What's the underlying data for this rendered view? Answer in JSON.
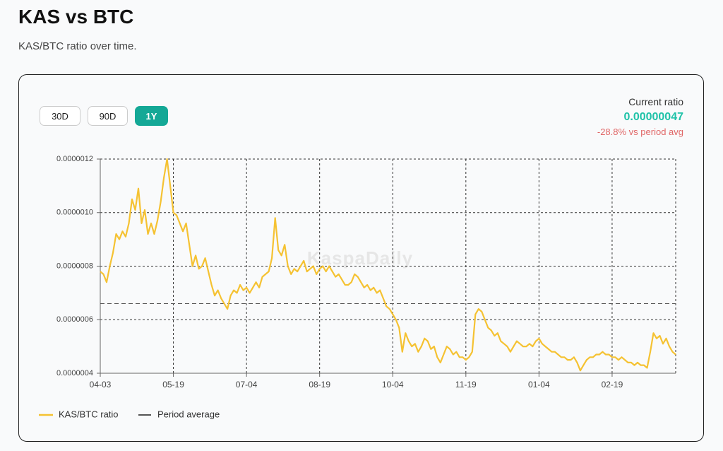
{
  "header": {
    "title": "KAS vs BTC",
    "subtitle": "KAS/BTC ratio over time."
  },
  "controls": {
    "ranges": [
      "30D",
      "90D",
      "1Y"
    ],
    "selected": "1Y"
  },
  "summary": {
    "label": "Current ratio",
    "value": "0.00000047",
    "change": "-28.8% vs period avg"
  },
  "watermark": "KaspaDaily",
  "chart_data": {
    "type": "line",
    "categories": [
      "04-03",
      "04-05",
      "04-07",
      "04-09",
      "04-11",
      "04-13",
      "04-15",
      "04-17",
      "04-19",
      "04-21",
      "04-23",
      "04-25",
      "04-27",
      "04-29",
      "05-01",
      "05-03",
      "05-05",
      "05-07",
      "05-09",
      "05-11",
      "05-13",
      "05-15",
      "05-17",
      "05-19",
      "05-21",
      "05-23",
      "05-25",
      "05-27",
      "05-29",
      "05-31",
      "06-02",
      "06-04",
      "06-06",
      "06-08",
      "06-10",
      "06-12",
      "06-14",
      "06-16",
      "06-18",
      "06-20",
      "06-22",
      "06-24",
      "06-26",
      "06-28",
      "06-30",
      "07-02",
      "07-04",
      "07-06",
      "07-08",
      "07-10",
      "07-12",
      "07-14",
      "07-16",
      "07-18",
      "07-20",
      "07-22",
      "07-24",
      "07-26",
      "07-28",
      "07-30",
      "08-01",
      "08-03",
      "08-05",
      "08-07",
      "08-09",
      "08-11",
      "08-13",
      "08-15",
      "08-17",
      "08-19",
      "08-21",
      "08-23",
      "08-25",
      "08-27",
      "08-29",
      "08-31",
      "09-02",
      "09-04",
      "09-06",
      "09-08",
      "09-10",
      "09-12",
      "09-14",
      "09-16",
      "09-18",
      "09-20",
      "09-22",
      "09-24",
      "09-26",
      "09-28",
      "09-30",
      "10-02",
      "10-04",
      "10-06",
      "10-08",
      "10-10",
      "10-12",
      "10-14",
      "10-16",
      "10-18",
      "10-20",
      "10-22",
      "10-24",
      "10-26",
      "10-28",
      "10-30",
      "11-01",
      "11-03",
      "11-05",
      "11-07",
      "11-09",
      "11-11",
      "11-13",
      "11-15",
      "11-17",
      "11-19",
      "11-21",
      "11-23",
      "11-25",
      "11-27",
      "11-29",
      "12-01",
      "12-03",
      "12-05",
      "12-07",
      "12-09",
      "12-11",
      "12-13",
      "12-15",
      "12-17",
      "12-19",
      "12-21",
      "12-23",
      "12-25",
      "12-27",
      "12-29",
      "12-31",
      "01-02",
      "01-04",
      "01-06",
      "01-08",
      "01-10",
      "01-12",
      "01-14",
      "01-16",
      "01-18",
      "01-20",
      "01-22",
      "01-24",
      "01-26",
      "01-28",
      "01-30",
      "02-01",
      "02-03",
      "02-05",
      "02-07",
      "02-09",
      "02-11",
      "02-13",
      "02-15",
      "02-17",
      "02-19",
      "02-21",
      "02-23",
      "02-25",
      "02-27",
      "03-01",
      "03-03",
      "03-05",
      "03-07",
      "03-09",
      "03-11",
      "03-13",
      "03-15",
      "03-17",
      "03-19",
      "03-21",
      "03-23",
      "03-25",
      "03-27",
      "03-29",
      "03-31"
    ],
    "series": [
      {
        "name": "KAS/BTC ratio",
        "color": "#f5c232",
        "values": [
          7.8e-07,
          7.7e-07,
          7.4e-07,
          8e-07,
          8.5e-07,
          9.2e-07,
          9e-07,
          9.3e-07,
          9.1e-07,
          9.6e-07,
          1.05e-06,
          1.01e-06,
          1.09e-06,
          9.6e-07,
          1.01e-06,
          9.2e-07,
          9.6e-07,
          9.2e-07,
          9.7e-07,
          1.04e-06,
          1.13e-06,
          1.2e-06,
          1.1e-06,
          1e-06,
          9.9e-07,
          9.6e-07,
          9.3e-07,
          9.6e-07,
          8.8e-07,
          8e-07,
          8.4e-07,
          7.9e-07,
          8e-07,
          8.3e-07,
          7.8e-07,
          7.3e-07,
          6.9e-07,
          7.1e-07,
          6.8e-07,
          6.6e-07,
          6.4e-07,
          6.9e-07,
          7.1e-07,
          7e-07,
          7.3e-07,
          7.1e-07,
          7.2e-07,
          7e-07,
          7.2e-07,
          7.4e-07,
          7.2e-07,
          7.6e-07,
          7.7e-07,
          7.8e-07,
          8.3e-07,
          9.8e-07,
          8.6e-07,
          8.4e-07,
          8.8e-07,
          8e-07,
          7.7e-07,
          7.9e-07,
          7.8e-07,
          8e-07,
          8.2e-07,
          7.8e-07,
          7.9e-07,
          8e-07,
          7.7e-07,
          7.9e-07,
          8e-07,
          7.8e-07,
          8e-07,
          7.8e-07,
          7.6e-07,
          7.7e-07,
          7.5e-07,
          7.3e-07,
          7.3e-07,
          7.4e-07,
          7.7e-07,
          7.6e-07,
          7.4e-07,
          7.2e-07,
          7.3e-07,
          7.1e-07,
          7.2e-07,
          7e-07,
          7.1e-07,
          6.8e-07,
          6.5e-07,
          6.4e-07,
          6.2e-07,
          6e-07,
          5.7e-07,
          4.8e-07,
          5.5e-07,
          5.2e-07,
          5e-07,
          5.1e-07,
          4.8e-07,
          5e-07,
          5.3e-07,
          5.2e-07,
          4.9e-07,
          5e-07,
          4.6e-07,
          4.4e-07,
          4.7e-07,
          5e-07,
          4.9e-07,
          4.7e-07,
          4.8e-07,
          4.6e-07,
          4.6e-07,
          4.5e-07,
          4.6e-07,
          4.8e-07,
          6.2e-07,
          6.4e-07,
          6.3e-07,
          6e-07,
          5.7e-07,
          5.6e-07,
          5.4e-07,
          5.5e-07,
          5.2e-07,
          5.1e-07,
          5e-07,
          4.8e-07,
          5e-07,
          5.2e-07,
          5.1e-07,
          5e-07,
          5e-07,
          5.1e-07,
          5e-07,
          5.2e-07,
          5.3e-07,
          5.1e-07,
          5e-07,
          4.9e-07,
          4.8e-07,
          4.8e-07,
          4.7e-07,
          4.6e-07,
          4.6e-07,
          4.5e-07,
          4.5e-07,
          4.6e-07,
          4.4e-07,
          4.1e-07,
          4.3e-07,
          4.5e-07,
          4.6e-07,
          4.6e-07,
          4.7e-07,
          4.7e-07,
          4.8e-07,
          4.7e-07,
          4.7e-07,
          4.6e-07,
          4.6e-07,
          4.5e-07,
          4.6e-07,
          4.5e-07,
          4.4e-07,
          4.4e-07,
          4.3e-07,
          4.4e-07,
          4.3e-07,
          4.3e-07,
          4.2e-07,
          4.8e-07,
          5.5e-07,
          5.3e-07,
          5.4e-07,
          5.1e-07,
          5.3e-07,
          5e-07,
          4.8e-07,
          4.7e-07
        ]
      }
    ],
    "average": {
      "name": "Period average",
      "value": 6.6e-07,
      "color": "#555555"
    },
    "ylim": [
      4e-07,
      1.2e-06
    ],
    "yticks": [
      {
        "value": 4e-07,
        "label": "0.0000004"
      },
      {
        "value": 6e-07,
        "label": "0.0000006"
      },
      {
        "value": 8e-07,
        "label": "0.0000008"
      },
      {
        "value": 1e-06,
        "label": "0.0000010"
      },
      {
        "value": 1.2e-06,
        "label": "0.0000012"
      }
    ],
    "xticks": [
      "04-03",
      "05-19",
      "07-04",
      "08-19",
      "10-04",
      "11-19",
      "01-04",
      "02-19"
    ],
    "grid": true
  }
}
